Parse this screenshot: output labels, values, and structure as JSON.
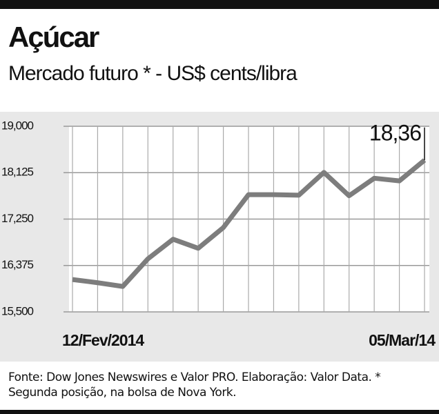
{
  "chart_data": {
    "type": "line",
    "title": "Açúcar",
    "subtitle": "Mercado futuro * -  US$ cents/libra",
    "categories": [
      "12/Fev/2014",
      null,
      null,
      null,
      null,
      null,
      null,
      null,
      null,
      null,
      null,
      null,
      null,
      null,
      "05/Mar/14"
    ],
    "series": [
      {
        "color": "#7d7d7d",
        "values": [
          16.11,
          16.05,
          15.98,
          16.5,
          16.87,
          16.7,
          17.09,
          17.71,
          17.71,
          17.7,
          18.13,
          17.69,
          18.02,
          17.97,
          18.36
        ],
        "value_labels": [
          null,
          null,
          null,
          null,
          null,
          null,
          null,
          null,
          null,
          null,
          null,
          null,
          null,
          null,
          "18,36"
        ]
      }
    ],
    "ylim": [
      15.5,
      19
    ],
    "yticks": [
      {
        "value": 15.5,
        "label": "15,500"
      },
      {
        "value": 16.375,
        "label": "16,375"
      },
      {
        "value": 17.25,
        "label": "17,250"
      },
      {
        "value": 18.125,
        "label": "18,125"
      },
      {
        "value": 19,
        "label": "19,000"
      }
    ],
    "grid": true,
    "source": "Fonte: Dow Jones Newswires e Valor PRO. Elaboração: Valor Data. * Segunda posição, na bolsa de Nova York."
  }
}
